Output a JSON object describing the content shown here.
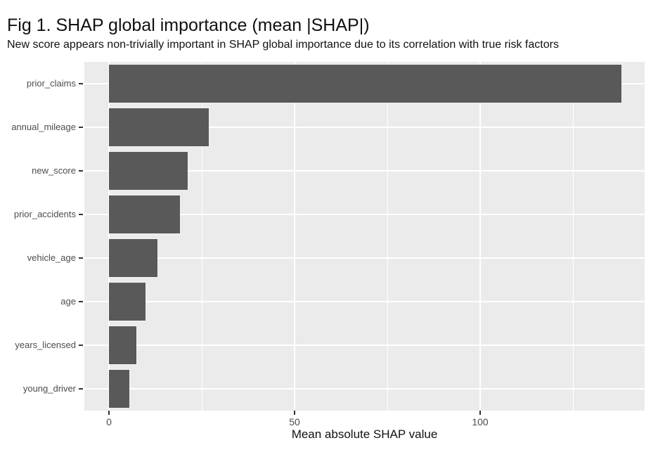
{
  "chart_data": {
    "type": "bar",
    "orientation": "horizontal",
    "title": "Fig 1. SHAP global importance (mean |SHAP|)",
    "subtitle": "New score appears non-trivially important in SHAP global importance due to its correlation with true risk factors",
    "categories": [
      "prior_claims",
      "annual_mileage",
      "new_score",
      "prior_accidents",
      "vehicle_age",
      "age",
      "years_licensed",
      "young_driver"
    ],
    "values": [
      138,
      26.9,
      21.2,
      19.2,
      13.1,
      9.9,
      7.3,
      5.4
    ],
    "xlabel": "Mean absolute SHAP value",
    "ylabel": "",
    "x_major_ticks": [
      0,
      50,
      100
    ],
    "x_minor_gridlines": [
      25,
      75,
      125
    ],
    "xlim": [
      0,
      144
    ],
    "grid": true,
    "legend_position": "none",
    "colors": {
      "bar_fill": "#595959",
      "panel_background": "#EBEBEB",
      "gridline": "#FFFFFF",
      "axis_text": "#4D4D4D",
      "title_text": "#111111",
      "tick_mark": "#333333"
    }
  }
}
